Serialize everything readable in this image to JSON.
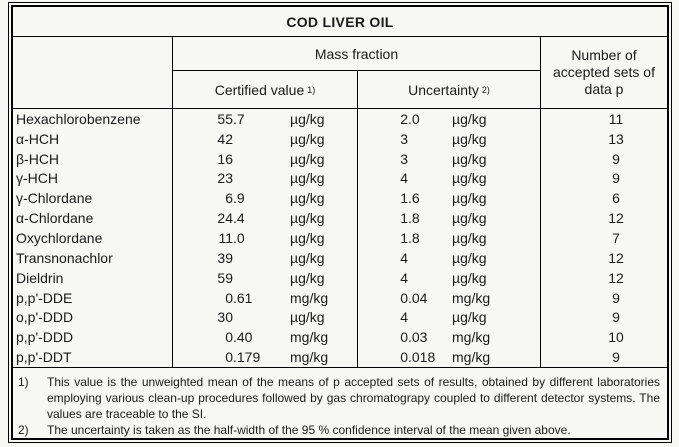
{
  "title": "COD LIVER OIL",
  "header": {
    "mass_fraction_label": "Mass fraction",
    "certified_value_label": "Certified value",
    "certified_value_footnote_ref": "1)",
    "uncertainty_label": "Uncertainty",
    "uncertainty_footnote_ref": "2)",
    "accepted_sets_lines": [
      "Number of",
      "accepted sets of",
      "data p"
    ]
  },
  "rows": [
    {
      "name": "Hexachlorobenzene",
      "certified_value": "55.7",
      "certified_unit": "µg/kg",
      "uncertainty_value": "2.0",
      "uncertainty_unit": "µg/kg",
      "accepted_sets": "11"
    },
    {
      "name": "α-HCH",
      "certified_value": "42",
      "certified_unit": "µg/kg",
      "uncertainty_value": "3",
      "uncertainty_unit": "µg/kg",
      "accepted_sets": "13"
    },
    {
      "name": "β-HCH",
      "certified_value": "16",
      "certified_unit": "µg/kg",
      "uncertainty_value": "3",
      "uncertainty_unit": "µg/kg",
      "accepted_sets": "9"
    },
    {
      "name": "γ-HCH",
      "certified_value": "23",
      "certified_unit": "µg/kg",
      "uncertainty_value": "4",
      "uncertainty_unit": "µg/kg",
      "accepted_sets": "9"
    },
    {
      "name": "γ-Chlordane",
      "certified_value": "6.9",
      "certified_unit": "µg/kg",
      "uncertainty_value": "1.6",
      "uncertainty_unit": "µg/kg",
      "accepted_sets": "6"
    },
    {
      "name": "α-Chlordane",
      "certified_value": "24.4",
      "certified_unit": "µg/kg",
      "uncertainty_value": "1.8",
      "uncertainty_unit": "µg/kg",
      "accepted_sets": "12"
    },
    {
      "name": "Oxychlordane",
      "certified_value": "11.0",
      "certified_unit": "µg/kg",
      "uncertainty_value": "1.8",
      "uncertainty_unit": "µg/kg",
      "accepted_sets": "7"
    },
    {
      "name": "Transnonachlor",
      "certified_value": "39",
      "certified_unit": "µg/kg",
      "uncertainty_value": "4",
      "uncertainty_unit": "µg/kg",
      "accepted_sets": "12"
    },
    {
      "name": "Dieldrin",
      "certified_value": "59",
      "certified_unit": "µg/kg",
      "uncertainty_value": "4",
      "uncertainty_unit": "µg/kg",
      "accepted_sets": "12"
    },
    {
      "name": "p,p'-DDE",
      "certified_value": "0.61",
      "certified_unit": "mg/kg",
      "uncertainty_value": "0.04",
      "uncertainty_unit": "mg/kg",
      "accepted_sets": "9"
    },
    {
      "name": "o,p'-DDD",
      "certified_value": "30",
      "certified_unit": "µg/kg",
      "uncertainty_value": "4",
      "uncertainty_unit": "µg/kg",
      "accepted_sets": "9"
    },
    {
      "name": "p,p'-DDD",
      "certified_value": "0.40",
      "certified_unit": "mg/kg",
      "uncertainty_value": "0.03",
      "uncertainty_unit": "mg/kg",
      "accepted_sets": "10"
    },
    {
      "name": "p,p'-DDT",
      "certified_value": "0.179",
      "certified_unit": "mg/kg",
      "uncertainty_value": "0.018",
      "uncertainty_unit": "mg/kg",
      "accepted_sets": "9"
    }
  ],
  "footnotes": [
    {
      "marker": "1)",
      "text": "This value is the unweighted mean of the means of p accepted sets of results, obtained by different laboratories employing various clean-up procedures followed by gas chromatograpy coupled to different detector systems. The values are traceable to the SI."
    },
    {
      "marker": "2)",
      "text": "The uncertainty is taken as the half-width of the 95 % confidence interval of the mean given above."
    }
  ],
  "colors": {
    "background": "#f7f7f4",
    "border": "#000000",
    "text": "#1a1a1a"
  }
}
